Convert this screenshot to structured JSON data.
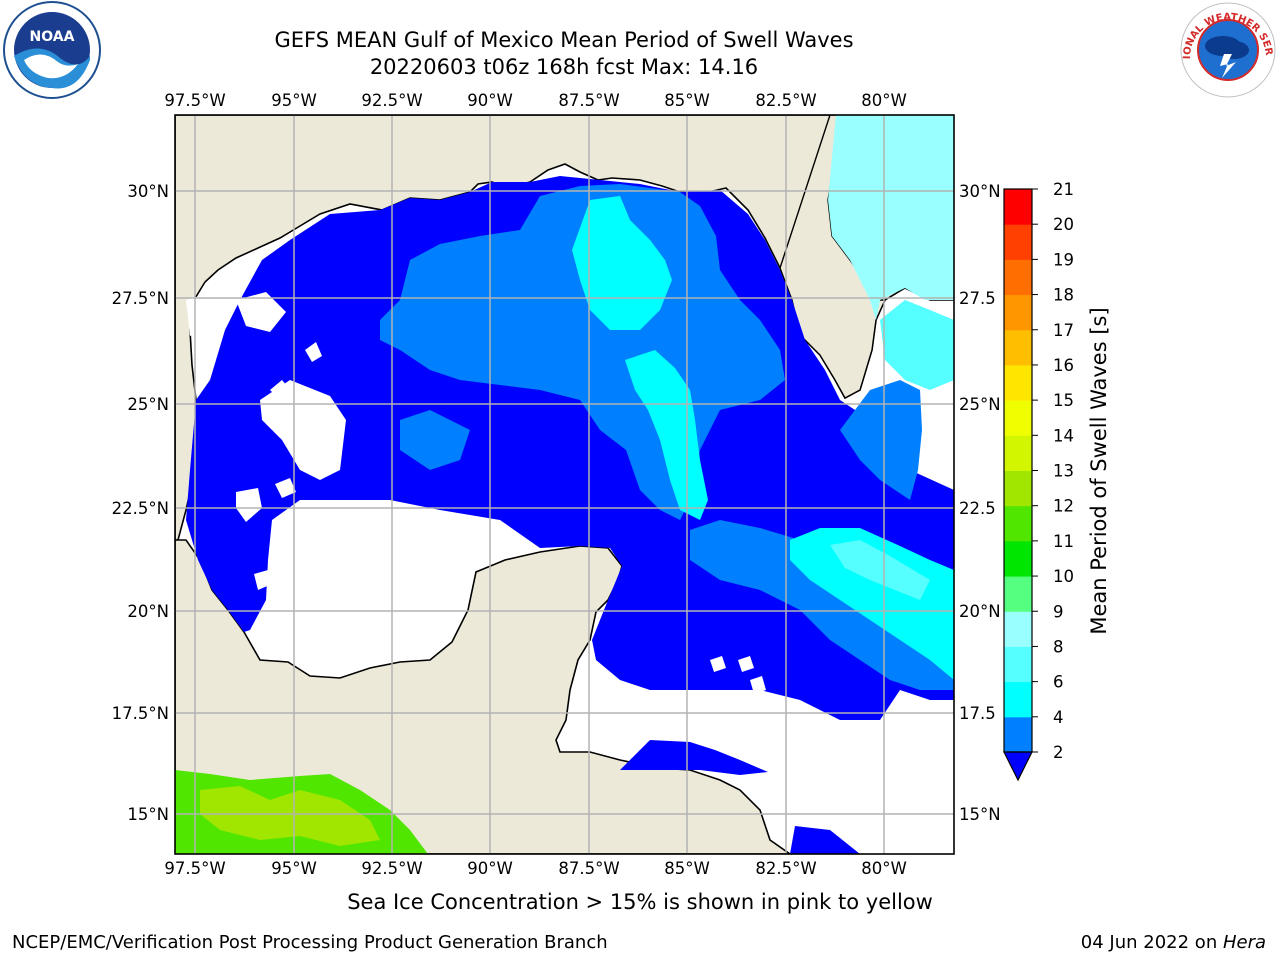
{
  "header": {
    "title_line1": "GEFS MEAN Gulf of Mexico Mean Period of Swell Waves",
    "title_line2": "20220603 t06z 168h fcst   Max: 14.16"
  },
  "logos": {
    "left": "noaa-logo",
    "right": "national-weather-service-logo",
    "left_text": "NOAA",
    "right_text": "NATIONAL WEATHER SERVICE"
  },
  "map": {
    "lon_labels": [
      "97.5°W",
      "95°W",
      "92.5°W",
      "90°W",
      "87.5°W",
      "85°W",
      "82.5°W",
      "80°W"
    ],
    "lat_labels": [
      "30°N",
      "27.5°N",
      "25°N",
      "22.5°N",
      "20°N",
      "17.5°N",
      "15°N"
    ],
    "lat_labels_right": [
      "30°N",
      "27.5",
      "25°N",
      "22.5",
      "20°N",
      "17.5",
      "15°N"
    ],
    "colors": {
      "land": "#ede9d9",
      "grid": "#b3b3b3",
      "ocean_below_2": "#ffffff"
    }
  },
  "colorbar": {
    "title": "Mean Period of Swell Waves [s]",
    "ticks": [
      "2",
      "4",
      "6",
      "8",
      "9",
      "10",
      "11",
      "12",
      "13",
      "14",
      "15",
      "16",
      "17",
      "18",
      "19",
      "20",
      "21"
    ],
    "colors": [
      "#0000ff",
      "#0080ff",
      "#00ffff",
      "#55ffff",
      "#99ffff",
      "#55ff80",
      "#00e600",
      "#50e600",
      "#a0e600",
      "#d2f500",
      "#f0ff00",
      "#ffe600",
      "#ffbe00",
      "#ff9600",
      "#ff6e00",
      "#ff4000",
      "#ff0000"
    ],
    "extend": "min"
  },
  "caption": "Sea Ice Concentration > 15% is shown in pink to yellow",
  "footer": {
    "left": "NCEP/EMC/Verification Post Processing Product Generation Branch",
    "right_date": "04 Jun 2022 on ",
    "right_host": "Hera"
  }
}
